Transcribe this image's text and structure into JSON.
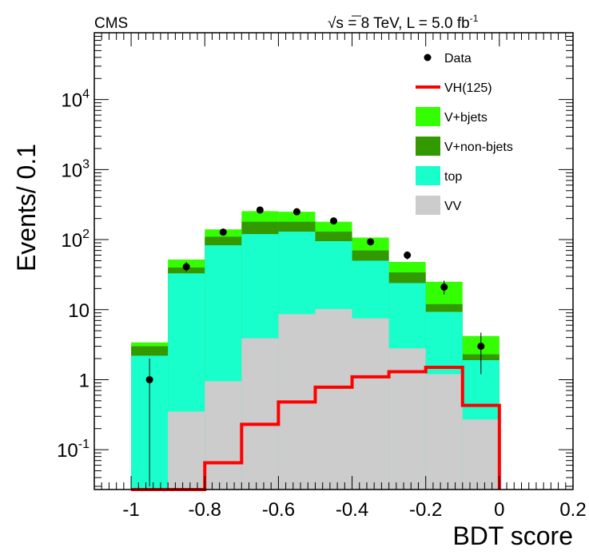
{
  "header": {
    "experiment": "CMS",
    "energy": "√s = 8 TeV, L = 5.0 fb",
    "lumi_unit_sup": "-1"
  },
  "chart_data": {
    "type": "bar",
    "stacked": true,
    "log_y": true,
    "xlabel": "BDT score",
    "ylabel": "Events/ 0.1",
    "xlim": [
      -1.1,
      0.2
    ],
    "ylim": [
      0.027,
      90000
    ],
    "x_ticks": [
      -1,
      -0.8,
      -0.6,
      -0.4,
      -0.2,
      0,
      0.2
    ],
    "x_tick_labels": [
      "-1",
      "-0.8",
      "-0.6",
      "-0.4",
      "-0.2",
      "0",
      "0.2"
    ],
    "y_ticks": [
      {
        "value": 0.1,
        "base": "10",
        "exp": "-1"
      },
      {
        "value": 1,
        "base": "1",
        "exp": ""
      },
      {
        "value": 10,
        "base": "10",
        "exp": ""
      },
      {
        "value": 100,
        "base": "10",
        "exp": "2"
      },
      {
        "value": 1000,
        "base": "10",
        "exp": "3"
      },
      {
        "value": 10000,
        "base": "10",
        "exp": "4"
      }
    ],
    "bin_edges": [
      -1.0,
      -0.9,
      -0.8,
      -0.7,
      -0.6,
      -0.5,
      -0.4,
      -0.3,
      -0.2,
      -0.1,
      0.0
    ],
    "stack": [
      {
        "name": "VV",
        "color": "#cccccc",
        "values": [
          0.027,
          0.35,
          0.95,
          3.9,
          8.6,
          10.2,
          7.5,
          2.8,
          1.2,
          0.27
        ]
      },
      {
        "name": "top",
        "color": "#19ffcc",
        "values": [
          2.2,
          33,
          83,
          120,
          130,
          95,
          50,
          24,
          9.3,
          1.9
        ]
      },
      {
        "name": "V+non-bjets",
        "color": "#339900",
        "values": [
          3.0,
          40,
          110,
          180,
          180,
          130,
          70,
          34,
          12,
          2.3
        ]
      },
      {
        "name": "V+bjets",
        "color": "#33ff00",
        "values": [
          3.4,
          52,
          140,
          255,
          250,
          180,
          107,
          48,
          25,
          4.2
        ]
      }
    ],
    "signal": {
      "name": "VH(125)",
      "color": "#ff0000",
      "values": [
        0.027,
        0.027,
        0.065,
        0.23,
        0.48,
        0.78,
        1.1,
        1.3,
        1.5,
        0.43
      ]
    },
    "data": {
      "name": "Data",
      "x": [
        -0.95,
        -0.85,
        -0.75,
        -0.65,
        -0.55,
        -0.45,
        -0.35,
        -0.25,
        -0.15,
        -0.05
      ],
      "y": [
        1,
        41,
        128,
        265,
        250,
        185,
        93,
        60,
        21,
        3
      ],
      "err_low": [
        0.97,
        6,
        11,
        16,
        16,
        14,
        10,
        8,
        4.5,
        1.8
      ],
      "err_high": [
        1.0,
        7,
        12,
        17,
        16,
        14,
        10,
        8,
        5,
        1.7
      ]
    },
    "legend_order": [
      "Data",
      "VH(125)",
      "V+bjets",
      "V+non-bjets",
      "top",
      "VV"
    ],
    "legend_position": "top-right"
  }
}
